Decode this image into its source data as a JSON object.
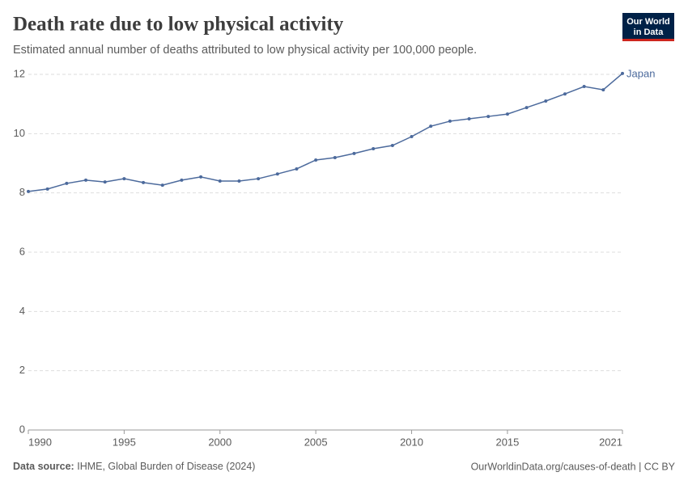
{
  "chart_data": {
    "type": "line",
    "title": "Death rate due to low physical activity",
    "subtitle": "Estimated annual number of deaths attributed to low physical activity per 100,000 people.",
    "x": [
      1990,
      1991,
      1992,
      1993,
      1994,
      1995,
      1996,
      1997,
      1998,
      1999,
      2000,
      2001,
      2002,
      2003,
      2004,
      2005,
      2006,
      2007,
      2008,
      2009,
      2010,
      2011,
      2012,
      2013,
      2014,
      2015,
      2016,
      2017,
      2018,
      2019,
      2020,
      2021
    ],
    "series": [
      {
        "name": "Japan",
        "color": "#4c6a9c",
        "values": [
          8.05,
          8.13,
          8.32,
          8.43,
          8.37,
          8.48,
          8.35,
          8.26,
          8.43,
          8.54,
          8.4,
          8.4,
          8.48,
          8.64,
          8.81,
          9.11,
          9.19,
          9.33,
          9.49,
          9.6,
          9.9,
          10.25,
          10.42,
          10.5,
          10.58,
          10.66,
          10.88,
          11.1,
          11.34,
          11.59,
          11.48,
          12.03
        ]
      }
    ],
    "xlim": [
      1990,
      2021
    ],
    "xticks": [
      1990,
      1995,
      2000,
      2005,
      2010,
      2015,
      2021
    ],
    "ylim": [
      0,
      12
    ],
    "yticks": [
      0,
      2,
      4,
      6,
      8,
      10,
      12
    ],
    "grid": true
  },
  "logo": {
    "line1": "Our World",
    "line2": "in Data"
  },
  "footer": {
    "source_label": "Data source:",
    "source": "IHME, Global Burden of Disease (2024)",
    "link": "OurWorldinData.org/causes-of-death | CC BY"
  }
}
